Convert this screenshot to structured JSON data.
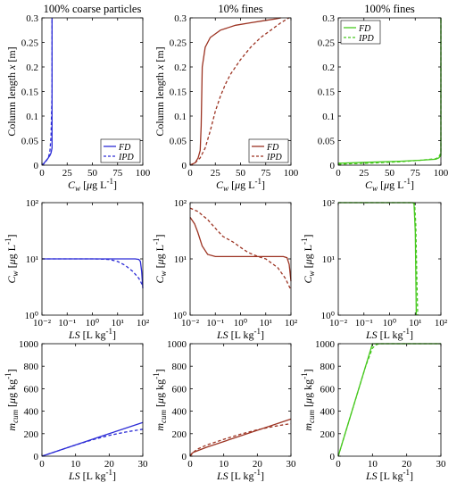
{
  "colors": {
    "blue": "#2c2cd6",
    "red": "#9c3322",
    "green": "#46c81e"
  },
  "chart_data": [
    {
      "type": "line",
      "title": "100% coarse particles",
      "xlabel": "C_w [µg L⁻¹]",
      "ylabel": "Column length x [m]",
      "xlim": [
        0,
        100
      ],
      "ylim": [
        0,
        0.3
      ],
      "xticks": [
        0,
        25,
        50,
        75,
        100
      ],
      "yticks": [
        0,
        0.05,
        0.1,
        0.15,
        0.2,
        0.25,
        0.3
      ],
      "xscale": "linear",
      "legend": "bottom-right",
      "color": "blue",
      "series": [
        {
          "name": "FD",
          "style": "solid",
          "x": [
            0,
            2,
            4,
            6,
            8,
            9,
            10,
            10,
            10
          ],
          "y": [
            0,
            0.004,
            0.009,
            0.014,
            0.02,
            0.025,
            0.035,
            0.1,
            0.3
          ]
        },
        {
          "name": "IPD",
          "style": "dashed",
          "x": [
            0,
            2,
            4,
            6,
            7,
            8,
            9,
            10,
            10
          ],
          "y": [
            0,
            0.003,
            0.008,
            0.014,
            0.02,
            0.03,
            0.06,
            0.15,
            0.3
          ]
        }
      ]
    },
    {
      "type": "line",
      "title": "10% fines",
      "xlabel": "C_w [µg L⁻¹]",
      "ylabel": "Column length x [m]",
      "xlim": [
        0,
        100
      ],
      "ylim": [
        0,
        0.3
      ],
      "xticks": [
        0,
        25,
        50,
        75,
        100
      ],
      "yticks": [
        0,
        0.05,
        0.1,
        0.15,
        0.2,
        0.25,
        0.3
      ],
      "xscale": "linear",
      "legend": "bottom-right",
      "color": "red",
      "series": [
        {
          "name": "FD",
          "style": "solid",
          "x": [
            0,
            5,
            8,
            10,
            11,
            12,
            15,
            20,
            30,
            45,
            60,
            75,
            85,
            90
          ],
          "y": [
            0,
            0.005,
            0.015,
            0.03,
            0.08,
            0.2,
            0.24,
            0.26,
            0.275,
            0.285,
            0.29,
            0.295,
            0.298,
            0.3
          ]
        },
        {
          "name": "IPD",
          "style": "dashed",
          "x": [
            0,
            5,
            10,
            15,
            20,
            25,
            30,
            35,
            40,
            50,
            60,
            70,
            80,
            90,
            98
          ],
          "y": [
            0,
            0.005,
            0.015,
            0.035,
            0.07,
            0.11,
            0.14,
            0.165,
            0.185,
            0.215,
            0.24,
            0.26,
            0.275,
            0.29,
            0.3
          ]
        }
      ]
    },
    {
      "type": "line",
      "title": "100% fines",
      "xlabel": "C_w [µg L⁻¹]",
      "ylabel": "",
      "xlim": [
        0,
        100
      ],
      "ylim": [
        0,
        0.3
      ],
      "xticks": [
        0,
        25,
        50,
        75,
        100
      ],
      "yticks": [
        0,
        0.05,
        0.1,
        0.15,
        0.2,
        0.25,
        0.3
      ],
      "xscale": "linear",
      "legend": "top-left",
      "color": "green",
      "series": [
        {
          "name": "FD",
          "style": "solid",
          "x": [
            0,
            30,
            60,
            80,
            95,
            98,
            100,
            100
          ],
          "y": [
            0.004,
            0.006,
            0.008,
            0.01,
            0.012,
            0.015,
            0.02,
            0.3
          ]
        },
        {
          "name": "IPD",
          "style": "dashed",
          "x": [
            0,
            30,
            60,
            80,
            95,
            98,
            100,
            100
          ],
          "y": [
            0.002,
            0.004,
            0.007,
            0.01,
            0.013,
            0.017,
            0.025,
            0.3
          ]
        }
      ]
    },
    {
      "type": "line",
      "title": "",
      "xlabel": "LS [L kg⁻¹]",
      "ylabel": "C_w [µg L⁻¹]",
      "xlim": [
        0.01,
        100
      ],
      "ylim": [
        1,
        100
      ],
      "xscale": "log",
      "yscale": "log",
      "xticks": [
        0.01,
        0.1,
        1,
        10,
        100
      ],
      "xticklabels": [
        "10⁻²",
        "10⁻¹",
        "10⁰",
        "10¹",
        "10²"
      ],
      "yticks": [
        1,
        10,
        100
      ],
      "yticklabels": [
        "10⁰",
        "10¹",
        "10²"
      ],
      "color": "blue",
      "series": [
        {
          "style": "solid",
          "x": [
            0.01,
            0.1,
            1,
            10,
            50,
            70,
            80,
            90,
            100
          ],
          "y": [
            10,
            10,
            10,
            10,
            10,
            9.8,
            9,
            6,
            3
          ]
        },
        {
          "style": "dashed",
          "x": [
            0.01,
            0.1,
            1,
            3,
            5,
            10,
            20,
            40,
            70,
            100
          ],
          "y": [
            10,
            10,
            10,
            9.9,
            9.7,
            9,
            7.7,
            6,
            4.5,
            3.3
          ]
        }
      ]
    },
    {
      "type": "line",
      "title": "",
      "xlabel": "LS [L kg⁻¹]",
      "ylabel": "C_w [µg L⁻¹]",
      "xlim": [
        0.01,
        100
      ],
      "ylim": [
        1,
        100
      ],
      "xscale": "log",
      "yscale": "log",
      "xticks": [
        0.01,
        0.1,
        1,
        10,
        100
      ],
      "xticklabels": [
        "10⁻²",
        "10⁻¹",
        "10⁰",
        "10¹",
        "10²"
      ],
      "yticks": [
        1,
        10,
        100
      ],
      "yticklabels": [
        "10⁰",
        "10¹",
        "10²"
      ],
      "color": "red",
      "series": [
        {
          "style": "solid",
          "x": [
            0.01,
            0.015,
            0.02,
            0.03,
            0.05,
            0.1,
            1,
            10,
            50,
            70,
            85,
            100
          ],
          "y": [
            55,
            42,
            30,
            17,
            12,
            11,
            11,
            11,
            11,
            10.5,
            8,
            4
          ]
        },
        {
          "style": "dashed",
          "x": [
            0.01,
            0.02,
            0.05,
            0.1,
            0.2,
            0.5,
            1,
            2,
            5,
            10,
            30,
            60,
            100
          ],
          "y": [
            80,
            70,
            50,
            35,
            25,
            20,
            16,
            13,
            11,
            10,
            7,
            4.5,
            2.8
          ]
        }
      ]
    },
    {
      "type": "line",
      "title": "",
      "xlabel": "LS [L kg⁻¹]",
      "ylabel": "C_w [µg L⁻¹]",
      "xlim": [
        0.01,
        100
      ],
      "ylim": [
        1,
        100
      ],
      "xscale": "log",
      "yscale": "log",
      "xticks": [
        0.01,
        0.1,
        1,
        10,
        100
      ],
      "xticklabels": [
        "10⁻²",
        "10⁻¹",
        "10⁰",
        "10¹",
        "10²"
      ],
      "yticks": [
        1,
        10,
        100
      ],
      "yticklabels": [
        "10⁰",
        "10¹",
        "10²"
      ],
      "color": "green",
      "series": [
        {
          "style": "solid",
          "x": [
            0.01,
            1,
            8,
            9,
            10,
            10.5,
            11
          ],
          "y": [
            100,
            100,
            100,
            95,
            30,
            5,
            1
          ]
        },
        {
          "style": "dashed",
          "x": [
            0.01,
            1,
            8,
            9.5,
            10.5,
            11.5,
            12.5
          ],
          "y": [
            100,
            100,
            100,
            98,
            40,
            5,
            1
          ]
        }
      ]
    },
    {
      "type": "line",
      "title": "",
      "xlabel": "LS [L kg⁻¹]",
      "ylabel": "m_cum [µg kg⁻¹]",
      "xlim": [
        0,
        30
      ],
      "ylim": [
        0,
        1000
      ],
      "xticks": [
        0,
        10,
        20,
        30
      ],
      "yticks": [
        0,
        200,
        400,
        600,
        800,
        1000
      ],
      "xscale": "linear",
      "color": "blue",
      "series": [
        {
          "style": "solid",
          "x": [
            0,
            10,
            20,
            30
          ],
          "y": [
            0,
            100,
            200,
            300
          ]
        },
        {
          "style": "dashed",
          "x": [
            0,
            5,
            10,
            15,
            20,
            25,
            30
          ],
          "y": [
            0,
            50,
            100,
            145,
            185,
            215,
            240
          ]
        }
      ]
    },
    {
      "type": "line",
      "title": "",
      "xlabel": "LS [L kg⁻¹]",
      "ylabel": "m_cum [µg kg⁻¹]",
      "xlim": [
        0,
        30
      ],
      "ylim": [
        0,
        1000
      ],
      "xticks": [
        0,
        10,
        20,
        30
      ],
      "yticks": [
        0,
        200,
        400,
        600,
        800,
        1000
      ],
      "xscale": "linear",
      "color": "red",
      "series": [
        {
          "style": "solid",
          "x": [
            0,
            0.5,
            1,
            5,
            10,
            20,
            30
          ],
          "y": [
            0,
            25,
            35,
            80,
            130,
            230,
            330
          ]
        },
        {
          "style": "dashed",
          "x": [
            0,
            1,
            2,
            5,
            10,
            15,
            20,
            25,
            30
          ],
          "y": [
            0,
            35,
            60,
            100,
            150,
            195,
            235,
            265,
            290
          ]
        }
      ]
    },
    {
      "type": "line",
      "title": "",
      "xlabel": "LS [L kg⁻¹]",
      "ylabel": "m_cum [µg kg⁻¹]",
      "xlim": [
        0,
        30
      ],
      "ylim": [
        0,
        1000
      ],
      "xticks": [
        0,
        10,
        20,
        30
      ],
      "yticks": [
        0,
        200,
        400,
        600,
        800,
        1000
      ],
      "xscale": "linear",
      "color": "green",
      "series": [
        {
          "style": "solid",
          "x": [
            0,
            10,
            30
          ],
          "y": [
            0,
            1000,
            1000
          ]
        },
        {
          "style": "dashed",
          "x": [
            0,
            8,
            10,
            11,
            12,
            30
          ],
          "y": [
            0,
            800,
            960,
            990,
            1000,
            1000
          ]
        }
      ]
    }
  ]
}
